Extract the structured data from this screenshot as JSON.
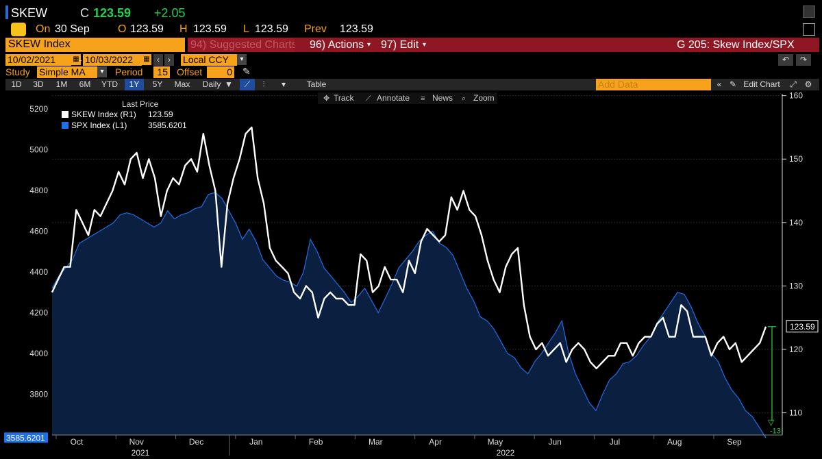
{
  "header": {
    "ticker": "SKEW",
    "close_label": "C",
    "close_value": "123.59",
    "change": "+2.05",
    "on_label": "On",
    "date": "30 Sep",
    "open_label": "O",
    "open_value": "123.59",
    "high_label": "H",
    "high_value": "123.59",
    "low_label": "L",
    "low_value": "123.59",
    "prev_label": "Prev",
    "prev_value": "123.59"
  },
  "tabs": {
    "title": "SKEW Index",
    "suggested": "94) Suggested Charts",
    "actions": "96) Actions",
    "edit": "97) Edit",
    "chart_name": "G 205: Skew Index/SPX"
  },
  "controls": {
    "start_date": "10/02/2021",
    "end_date": "10/03/2022",
    "currency": "Local CCY",
    "study_label": "Study",
    "study_value": "Simple MA",
    "period_label": "Period",
    "period_value": "15",
    "offset_label": "Offset",
    "offset_value": "0"
  },
  "timebar": {
    "ranges": [
      "1D",
      "3D",
      "1M",
      "6M",
      "YTD",
      "1Y",
      "5Y",
      "Max"
    ],
    "active": "1Y",
    "frequency": "Daily",
    "table": "Table",
    "add_data_placeholder": "Add Data",
    "edit_chart": "Edit Chart"
  },
  "tools": {
    "track": "Track",
    "annotate": "Annotate",
    "news": "News",
    "zoom": "Zoom"
  },
  "colors": {
    "skew_line": "#ffffff",
    "spx_line": "#1f6fe5",
    "area_fill": "#0b2041",
    "accent": "#f7a21b",
    "toolbar_red": "#8e1723",
    "up_green": "#24d14b"
  },
  "chart_data": {
    "type": "line",
    "title": "G 205: Skew Index/SPX",
    "legend_title": "Last Price",
    "legend_placement": "top-left",
    "series": [
      {
        "name": "SKEW Index (R1)",
        "axis": "right",
        "last": "123.59",
        "values": [
          129,
          131,
          133,
          133,
          142,
          140,
          138,
          142,
          141,
          143,
          145,
          148,
          146,
          150,
          151,
          147,
          150,
          147,
          141,
          145,
          147,
          146,
          149,
          150,
          148,
          154,
          149,
          145,
          133,
          143,
          147,
          150,
          154,
          155,
          147,
          143,
          136,
          134,
          133,
          132,
          129,
          128,
          130,
          129,
          125,
          128,
          129,
          128,
          128,
          127,
          127,
          135,
          134,
          129,
          130,
          133,
          131,
          131,
          129,
          134,
          132,
          137,
          139,
          138,
          137,
          138,
          144,
          142,
          145,
          142,
          141,
          138,
          134,
          131,
          129,
          133,
          135,
          136,
          127,
          122,
          120,
          121,
          119,
          120,
          121,
          118,
          120,
          121,
          120,
          118,
          117,
          118,
          119,
          119,
          121,
          121,
          119,
          121,
          122,
          122,
          124,
          125,
          122,
          122,
          127,
          126,
          122,
          122,
          122,
          119,
          121,
          122,
          120,
          121,
          118,
          119,
          120,
          121,
          123.59
        ]
      },
      {
        "name": "SPX Index (L1)",
        "axis": "left",
        "last": "3585.6201",
        "values": [
          4320,
          4380,
          4420,
          4460,
          4540,
          4560,
          4580,
          4600,
          4620,
          4640,
          4680,
          4690,
          4680,
          4660,
          4640,
          4620,
          4640,
          4700,
          4660,
          4680,
          4690,
          4710,
          4720,
          4780,
          4790,
          4760,
          4700,
          4640,
          4560,
          4610,
          4550,
          4460,
          4420,
          4380,
          4360,
          4350,
          4330,
          4400,
          4560,
          4500,
          4420,
          4380,
          4340,
          4300,
          4250,
          4280,
          4320,
          4260,
          4200,
          4270,
          4340,
          4420,
          4460,
          4500,
          4550,
          4580,
          4600,
          4540,
          4520,
          4480,
          4400,
          4320,
          4260,
          4180,
          4160,
          4120,
          4060,
          4000,
          3980,
          3930,
          3900,
          3960,
          4000,
          4050,
          4100,
          4160,
          4000,
          3900,
          3830,
          3760,
          3720,
          3800,
          3870,
          3900,
          3950,
          3960,
          3990,
          4040,
          4080,
          4150,
          4200,
          4250,
          4300,
          4290,
          4230,
          4150,
          4090,
          4000,
          3960,
          3880,
          3820,
          3780,
          3720,
          3690,
          3640,
          3585.6201
        ]
      }
    ],
    "left_axis": {
      "ticks": [
        3800,
        4000,
        4200,
        4400,
        4600,
        4800,
        5000,
        5200
      ],
      "range": [
        3600,
        5280
      ]
    },
    "right_axis": {
      "ticks": [
        110,
        120,
        130,
        140,
        150,
        160
      ],
      "range": [
        106.5,
        160.5
      ]
    },
    "x_labels": [
      {
        "label": "Oct",
        "year": "2021"
      },
      {
        "label": "Nov",
        "year": ""
      },
      {
        "label": "Dec",
        "year": ""
      },
      {
        "label": "Jan",
        "year": "2022"
      },
      {
        "label": "Feb",
        "year": ""
      },
      {
        "label": "Mar",
        "year": ""
      },
      {
        "label": "Apr",
        "year": ""
      },
      {
        "label": "May",
        "year": ""
      },
      {
        "label": "Jun",
        "year": ""
      },
      {
        "label": "Jul",
        "year": ""
      },
      {
        "label": "Aug",
        "year": ""
      },
      {
        "label": "Sep",
        "year": ""
      }
    ],
    "year_labels": [
      "2021",
      "2022"
    ],
    "last_price_left": "3585.6201",
    "last_price_right": "123.59",
    "change_annotation": "-13"
  }
}
